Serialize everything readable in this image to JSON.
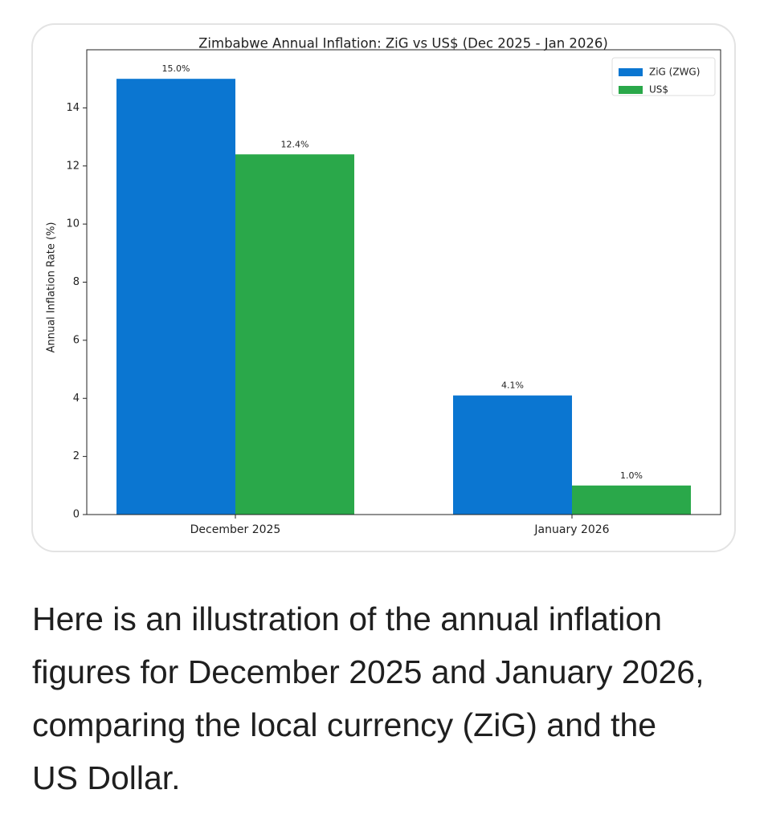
{
  "chart_data": {
    "type": "bar",
    "title": "Zimbabwe Annual Inflation: ZiG vs US$ (Dec 2025 - Jan 2026)",
    "y_label": "Annual Inflation Rate (%)",
    "categories": [
      "December 2025",
      "January 2026"
    ],
    "series": [
      {
        "name": "ZiG (ZWG)",
        "color": "#0b76d1",
        "values": [
          15.0,
          4.1
        ],
        "value_labels": [
          "15.0%",
          "4.1%"
        ]
      },
      {
        "name": "US$",
        "color": "#2aa84a",
        "values": [
          12.4,
          1.0
        ],
        "value_labels": [
          "12.4%",
          "1.0%"
        ]
      }
    ],
    "ylim": [
      0,
      16
    ],
    "yticks": [
      0,
      2,
      4,
      6,
      8,
      10,
      12,
      14
    ],
    "legend": "upper-right"
  },
  "message": "Here is an illustration of the annual inflation figures for December 2025 and January 2026, comparing the local currency (ZiG) and the US Dollar."
}
